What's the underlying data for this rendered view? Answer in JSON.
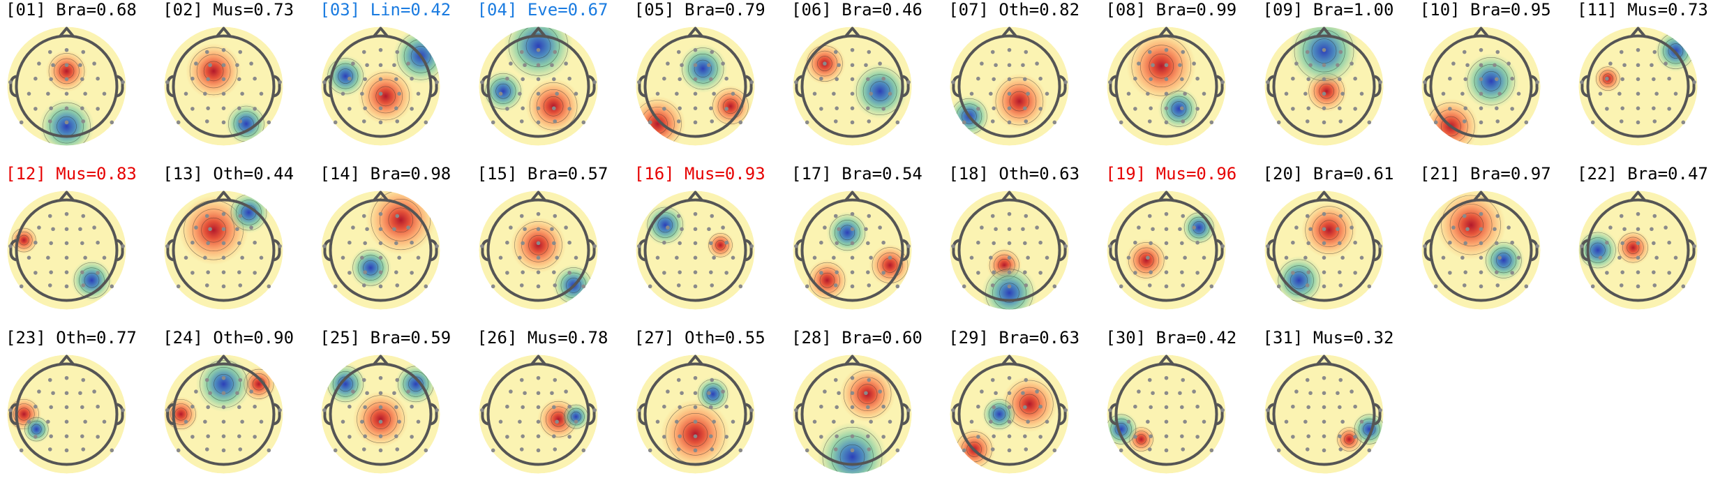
{
  "colors": {
    "default": "#000000",
    "muscle": "#e60000",
    "eye_line": "#1a7be0"
  },
  "components": [
    {
      "text": "[01] Bra=0.68",
      "color": "default",
      "hot": [
        [
          0.0,
          -0.3,
          0.3
        ]
      ],
      "cold": [
        [
          0.0,
          0.8,
          0.4
        ]
      ]
    },
    {
      "text": "[02] Mus=0.73",
      "color": "default",
      "hot": [
        [
          -0.2,
          -0.3,
          0.4
        ]
      ],
      "cold": [
        [
          0.45,
          0.75,
          0.3
        ]
      ]
    },
    {
      "text": "[03] Lin=0.42",
      "color": "eye_line",
      "hot": [
        [
          0.1,
          0.2,
          0.4
        ]
      ],
      "cold": [
        [
          0.8,
          -0.6,
          0.4
        ],
        [
          -0.7,
          -0.2,
          0.3
        ]
      ]
    },
    {
      "text": "[04] Eve=0.67",
      "color": "eye_line",
      "hot": [
        [
          0.3,
          0.4,
          0.4
        ]
      ],
      "cold": [
        [
          0.0,
          -0.8,
          0.5
        ],
        [
          -0.7,
          0.1,
          0.3
        ]
      ]
    },
    {
      "text": "[05] Bra=0.79",
      "color": "default",
      "hot": [
        [
          -0.75,
          0.75,
          0.4
        ],
        [
          0.7,
          0.4,
          0.3
        ]
      ],
      "cold": [
        [
          0.15,
          -0.35,
          0.35
        ]
      ]
    },
    {
      "text": "[06] Bra=0.46",
      "color": "default",
      "hot": [
        [
          -0.55,
          -0.45,
          0.3
        ]
      ],
      "cold": [
        [
          0.55,
          0.1,
          0.4
        ]
      ]
    },
    {
      "text": "[07] Oth=0.82",
      "color": "default",
      "hot": [
        [
          0.2,
          0.3,
          0.4
        ]
      ],
      "cold": [
        [
          -0.8,
          0.6,
          0.3
        ]
      ]
    },
    {
      "text": "[08] Bra=0.99",
      "color": "default",
      "hot": [
        [
          -0.1,
          -0.4,
          0.5
        ]
      ],
      "cold": [
        [
          0.25,
          0.45,
          0.3
        ]
      ]
    },
    {
      "text": "[09] Bra=1.00",
      "color": "default",
      "hot": [
        [
          0.05,
          0.1,
          0.3
        ]
      ],
      "cold": [
        [
          0.0,
          -0.7,
          0.5
        ]
      ]
    },
    {
      "text": "[10] Bra=0.95",
      "color": "default",
      "hot": [
        [
          -0.6,
          0.8,
          0.4
        ]
      ],
      "cold": [
        [
          0.2,
          -0.1,
          0.4
        ]
      ]
    },
    {
      "text": "[11] Mus=0.73",
      "color": "default",
      "hot": [
        [
          -0.6,
          -0.15,
          0.18
        ]
      ],
      "cold": [
        [
          0.75,
          -0.7,
          0.3
        ]
      ]
    },
    {
      "text": "[12] Mus=0.83",
      "color": "muscle",
      "hot": [
        [
          -0.85,
          -0.2,
          0.2
        ]
      ],
      "cold": [
        [
          0.5,
          0.6,
          0.3
        ]
      ]
    },
    {
      "text": "[13] Oth=0.44",
      "color": "default",
      "hot": [
        [
          -0.2,
          -0.4,
          0.5
        ]
      ],
      "cold": [
        [
          0.5,
          -0.75,
          0.3
        ]
      ]
    },
    {
      "text": "[14] Bra=0.98",
      "color": "default",
      "hot": [
        [
          0.4,
          -0.6,
          0.5
        ]
      ],
      "cold": [
        [
          -0.2,
          0.35,
          0.3
        ]
      ]
    },
    {
      "text": "[15] Bra=0.57",
      "color": "default",
      "hot": [
        [
          0.0,
          -0.1,
          0.4
        ]
      ],
      "cold": [
        [
          0.7,
          0.7,
          0.3
        ]
      ]
    },
    {
      "text": "[16] Mus=0.93",
      "color": "muscle",
      "hot": [
        [
          0.5,
          -0.1,
          0.18
        ]
      ],
      "cold": [
        [
          -0.6,
          -0.5,
          0.3
        ]
      ]
    },
    {
      "text": "[17] Bra=0.54",
      "color": "default",
      "hot": [
        [
          0.75,
          0.3,
          0.3
        ],
        [
          -0.5,
          0.6,
          0.3
        ]
      ],
      "cold": [
        [
          -0.1,
          -0.35,
          0.3
        ]
      ]
    },
    {
      "text": "[18] Oth=0.63",
      "color": "default",
      "hot": [
        [
          -0.1,
          0.3,
          0.25
        ]
      ],
      "cold": [
        [
          0.0,
          0.85,
          0.4
        ]
      ]
    },
    {
      "text": "[19] Mus=0.96",
      "color": "muscle",
      "hot": [
        [
          -0.4,
          0.2,
          0.3
        ]
      ],
      "cold": [
        [
          0.65,
          -0.45,
          0.25
        ]
      ]
    },
    {
      "text": "[20] Bra=0.61",
      "color": "default",
      "hot": [
        [
          0.1,
          -0.4,
          0.4
        ]
      ],
      "cold": [
        [
          -0.5,
          0.6,
          0.35
        ]
      ]
    },
    {
      "text": "[21] Bra=0.97",
      "color": "default",
      "hot": [
        [
          -0.2,
          -0.5,
          0.5
        ]
      ],
      "cold": [
        [
          0.45,
          0.2,
          0.3
        ]
      ]
    },
    {
      "text": "[22] Bra=0.47",
      "color": "default",
      "hot": [
        [
          -0.1,
          -0.05,
          0.25
        ]
      ],
      "cold": [
        [
          -0.8,
          0.0,
          0.3
        ]
      ]
    },
    {
      "text": "[23] Oth=0.77",
      "color": "default",
      "hot": [
        [
          -0.85,
          0.0,
          0.25
        ]
      ],
      "cold": [
        [
          -0.6,
          0.3,
          0.2
        ]
      ]
    },
    {
      "text": "[24] Oth=0.90",
      "color": "default",
      "hot": [
        [
          -0.85,
          0.0,
          0.25
        ],
        [
          0.7,
          -0.6,
          0.25
        ]
      ],
      "cold": [
        [
          0.0,
          -0.6,
          0.4
        ]
      ]
    },
    {
      "text": "[25] Bra=0.59",
      "color": "default",
      "hot": [
        [
          0.0,
          0.1,
          0.4
        ]
      ],
      "cold": [
        [
          -0.7,
          -0.6,
          0.3
        ],
        [
          0.7,
          -0.6,
          0.3
        ]
      ]
    },
    {
      "text": "[26] Mus=0.78",
      "color": "default",
      "hot": [
        [
          0.4,
          0.1,
          0.3
        ]
      ],
      "cold": [
        [
          0.75,
          0.05,
          0.18
        ]
      ]
    },
    {
      "text": "[27] Oth=0.55",
      "color": "default",
      "hot": [
        [
          0.0,
          0.4,
          0.5
        ]
      ],
      "cold": [
        [
          0.35,
          -0.4,
          0.25
        ]
      ]
    },
    {
      "text": "[28] Bra=0.60",
      "color": "default",
      "hot": [
        [
          0.3,
          -0.4,
          0.4
        ]
      ],
      "cold": [
        [
          0.0,
          0.85,
          0.5
        ]
      ]
    },
    {
      "text": "[29] Bra=0.63",
      "color": "default",
      "hot": [
        [
          0.4,
          -0.2,
          0.4
        ],
        [
          -0.7,
          0.7,
          0.3
        ]
      ],
      "cold": [
        [
          -0.2,
          0.0,
          0.25
        ]
      ]
    },
    {
      "text": "[30] Bra=0.42",
      "color": "default",
      "hot": [
        [
          -0.5,
          0.5,
          0.2
        ]
      ],
      "cold": [
        [
          -0.9,
          0.3,
          0.25
        ]
      ]
    },
    {
      "text": "[31] Mus=0.32",
      "color": "default",
      "hot": [
        [
          0.5,
          0.5,
          0.2
        ]
      ],
      "cold": [
        [
          0.9,
          0.3,
          0.25
        ]
      ]
    }
  ]
}
